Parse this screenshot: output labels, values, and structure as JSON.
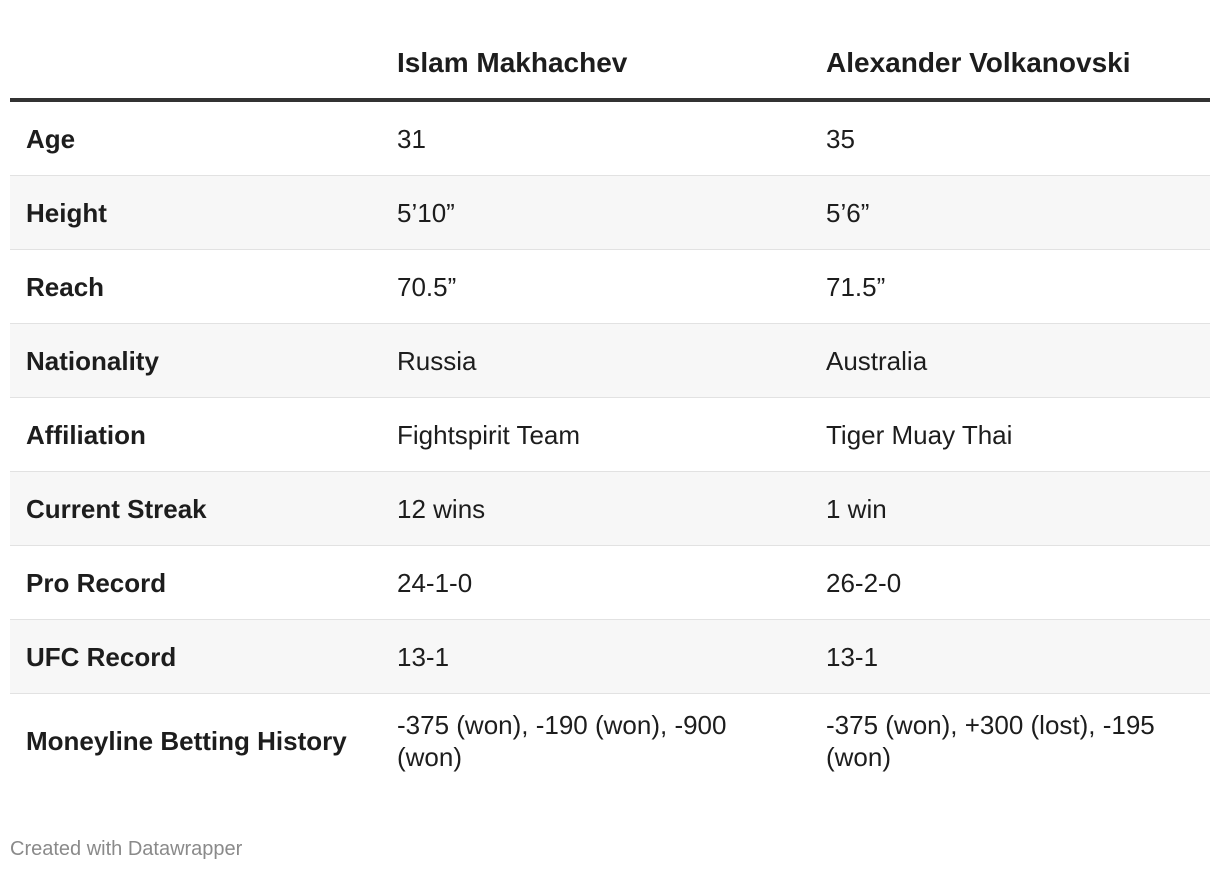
{
  "table": {
    "headers": [
      "",
      "Islam Makhachev",
      "Alexander Volkanovski"
    ],
    "rows": [
      {
        "label": "Age",
        "a": "31",
        "b": "35"
      },
      {
        "label": "Height",
        "a": "5’10”",
        "b": "5’6”"
      },
      {
        "label": "Reach",
        "a": "70.5”",
        "b": "71.5”"
      },
      {
        "label": "Nationality",
        "a": "Russia",
        "b": "Australia"
      },
      {
        "label": "Affiliation",
        "a": "Fightspirit Team",
        "b": "Tiger Muay Thai"
      },
      {
        "label": "Current Streak",
        "a": "12 wins",
        "b": "1 win"
      },
      {
        "label": "Pro Record",
        "a": "24-1-0",
        "b": "26-2-0"
      },
      {
        "label": "UFC Record",
        "a": "13-1",
        "b": "13-1"
      },
      {
        "label": "Moneyline Betting History",
        "a": "-375 (won), -190 (won), -900 (won)",
        "b": "-375 (won), +300 (lost), -195 (won)"
      }
    ]
  },
  "footer": {
    "credit": "Created with Datawrapper"
  },
  "colors": {
    "header_rule": "#333333",
    "stripe": "#f7f7f7",
    "row_divider": "#e2e2e2",
    "credit_text": "#8a8a8a"
  }
}
